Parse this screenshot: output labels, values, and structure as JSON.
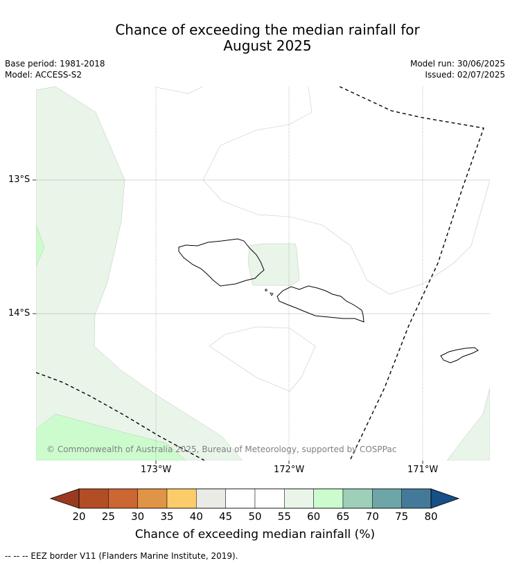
{
  "title": {
    "line1": "Chance of exceeding the median rainfall for",
    "line2": "August 2025"
  },
  "meta": {
    "base_period": "Base period: 1981-2018",
    "model": "Model: ACCESS-S2",
    "model_run": "Model run: 30/06/2025",
    "issued": "Issued: 02/07/2025"
  },
  "map": {
    "lat_labels": [
      "13°S",
      "14°S"
    ],
    "lon_labels": [
      "173°W",
      "172°W",
      "171°W"
    ],
    "copyright": "© Commonwealth of Australia 2025, Bureau of Meteorology, supported by COSPPac",
    "colors": {
      "band_55_60": "#e9f5e9",
      "band_60_65": "#ccfcce",
      "background": "#ffffff"
    }
  },
  "colorbar": {
    "ticks": [
      "20",
      "25",
      "30",
      "35",
      "40",
      "45",
      "50",
      "55",
      "60",
      "65",
      "70",
      "75",
      "80"
    ],
    "colors": [
      "#b34d26",
      "#cc6633",
      "#e09445",
      "#fdcc6a",
      "#ebebe6",
      "#ffffff",
      "#ffffff",
      "#e9f5e9",
      "#ccfcce",
      "#9ecfb8",
      "#6ea6a8",
      "#437a9a"
    ],
    "under_color": "#993a20",
    "over_color": "#174f87",
    "label": "Chance of exceeding median rainfall (%)"
  },
  "footnote": "--  --  -- EEZ border V11 (Flanders Marine Institute, 2019)."
}
